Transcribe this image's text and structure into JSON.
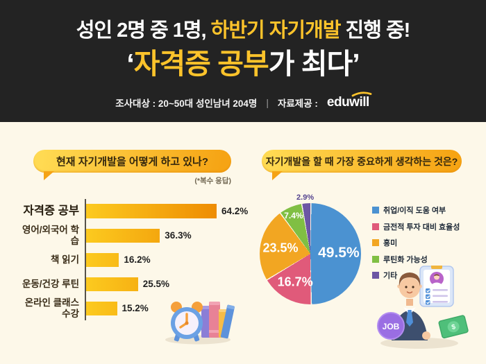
{
  "colors": {
    "header_background": "#232323",
    "accent_yellow": "#fcc32b",
    "body_background": "#fdf8e9",
    "bubble_gradient_start": "#ffda52",
    "bubble_gradient_end": "#f6a414",
    "bar_gradient_start": "#fcca1f",
    "bar_gradient_end": "#ee8c02"
  },
  "header": {
    "line1": {
      "pre": "성인 2명 중 1명, ",
      "highlight": "하반기 자기개발",
      "post": " 진행 중!"
    },
    "line2": {
      "pre": "‘",
      "highlight": "자격증 공부",
      "post": "가 최다’"
    },
    "survey": {
      "target": "조사대상 : 20~50대 성인남녀 204명",
      "divider": "|",
      "source_label": "자료제공 :",
      "brand": "eduwill"
    }
  },
  "chart_data": [
    {
      "type": "bar",
      "orientation": "horizontal",
      "title": "현재 자기개발을 어떻게 하고 있나?",
      "note": "(*복수 응답)",
      "categories": [
        "자격증 공부",
        "영어/외국어 학습",
        "책 읽기",
        "운동/건강 루틴",
        "온라인 클래스 수강"
      ],
      "values": [
        64.2,
        36.3,
        16.2,
        25.5,
        15.2
      ],
      "unit": "%",
      "xlim": [
        0,
        70
      ],
      "grid": false
    },
    {
      "type": "pie",
      "title": "자기개발을 할 때 가장 중요하게 생각하는 것은?",
      "labels": [
        "취업/이직 도움 여부",
        "금전적 투자 대비 효율성",
        "흥미",
        "루틴화 가능성",
        "기타"
      ],
      "values": [
        49.5,
        16.7,
        23.5,
        7.4,
        2.9
      ],
      "colors": [
        "#4b92d1",
        "#e05a7a",
        "#f2a622",
        "#80bf43",
        "#6c56a4"
      ],
      "legend_position": "right",
      "inside_label_color": "#ffffff",
      "outside_label_color": "#54438f",
      "start_angle_deg": 0
    }
  ],
  "illustrations": {
    "left": "alarm-clock-and-books",
    "right": "job-seeker-with-resume-and-money",
    "job_badge": "JOB",
    "money_symbol": "$"
  }
}
